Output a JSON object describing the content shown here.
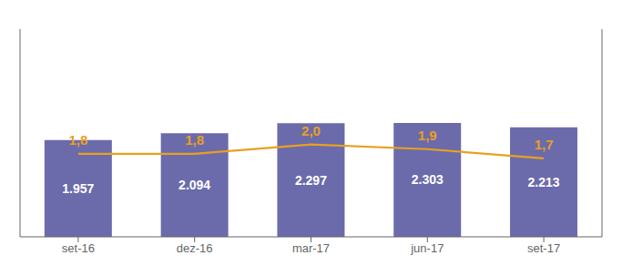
{
  "chart_data": {
    "type": "bar",
    "categories": [
      "set-16",
      "dez-16",
      "mar-17",
      "jun-17",
      "set-17"
    ],
    "series": [
      {
        "type": "bar",
        "color": "#6b6bab",
        "values": [
          1957,
          2094,
          2297,
          2303,
          2213
        ],
        "value_labels": [
          "1.957",
          "2.094",
          "2.297",
          "2.303",
          "2.213"
        ],
        "data_labels": true
      },
      {
        "type": "line",
        "axis": "y2",
        "color": "#e8a020",
        "values": [
          1.8,
          1.8,
          2.0,
          1.9,
          1.7
        ],
        "value_labels": [
          "1,8",
          "1,8",
          "2,0",
          "1,9",
          "1,7"
        ],
        "data_labels": true
      }
    ],
    "ylim": [
      0,
      4200
    ],
    "y2lim": [
      0,
      4.5
    ],
    "tick_labels": "x",
    "grid": false
  }
}
